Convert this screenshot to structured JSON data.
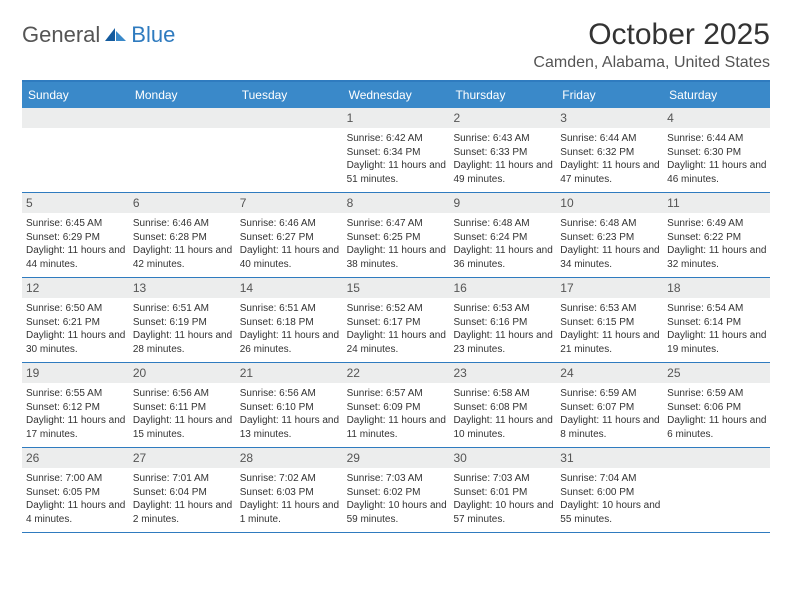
{
  "logo": {
    "text1": "General",
    "text2": "Blue"
  },
  "title": "October 2025",
  "location": "Camden, Alabama, United States",
  "colors": {
    "header_bg": "#3a89c9",
    "rule": "#2f7bbf",
    "daynum_bg": "#eceded",
    "text": "#333333"
  },
  "day_headers": [
    "Sunday",
    "Monday",
    "Tuesday",
    "Wednesday",
    "Thursday",
    "Friday",
    "Saturday"
  ],
  "weeks": [
    [
      {
        "n": "",
        "sunrise": "",
        "sunset": "",
        "day": ""
      },
      {
        "n": "",
        "sunrise": "",
        "sunset": "",
        "day": ""
      },
      {
        "n": "",
        "sunrise": "",
        "sunset": "",
        "day": ""
      },
      {
        "n": "1",
        "sunrise": "Sunrise: 6:42 AM",
        "sunset": "Sunset: 6:34 PM",
        "day": "Daylight: 11 hours and 51 minutes."
      },
      {
        "n": "2",
        "sunrise": "Sunrise: 6:43 AM",
        "sunset": "Sunset: 6:33 PM",
        "day": "Daylight: 11 hours and 49 minutes."
      },
      {
        "n": "3",
        "sunrise": "Sunrise: 6:44 AM",
        "sunset": "Sunset: 6:32 PM",
        "day": "Daylight: 11 hours and 47 minutes."
      },
      {
        "n": "4",
        "sunrise": "Sunrise: 6:44 AM",
        "sunset": "Sunset: 6:30 PM",
        "day": "Daylight: 11 hours and 46 minutes."
      }
    ],
    [
      {
        "n": "5",
        "sunrise": "Sunrise: 6:45 AM",
        "sunset": "Sunset: 6:29 PM",
        "day": "Daylight: 11 hours and 44 minutes."
      },
      {
        "n": "6",
        "sunrise": "Sunrise: 6:46 AM",
        "sunset": "Sunset: 6:28 PM",
        "day": "Daylight: 11 hours and 42 minutes."
      },
      {
        "n": "7",
        "sunrise": "Sunrise: 6:46 AM",
        "sunset": "Sunset: 6:27 PM",
        "day": "Daylight: 11 hours and 40 minutes."
      },
      {
        "n": "8",
        "sunrise": "Sunrise: 6:47 AM",
        "sunset": "Sunset: 6:25 PM",
        "day": "Daylight: 11 hours and 38 minutes."
      },
      {
        "n": "9",
        "sunrise": "Sunrise: 6:48 AM",
        "sunset": "Sunset: 6:24 PM",
        "day": "Daylight: 11 hours and 36 minutes."
      },
      {
        "n": "10",
        "sunrise": "Sunrise: 6:48 AM",
        "sunset": "Sunset: 6:23 PM",
        "day": "Daylight: 11 hours and 34 minutes."
      },
      {
        "n": "11",
        "sunrise": "Sunrise: 6:49 AM",
        "sunset": "Sunset: 6:22 PM",
        "day": "Daylight: 11 hours and 32 minutes."
      }
    ],
    [
      {
        "n": "12",
        "sunrise": "Sunrise: 6:50 AM",
        "sunset": "Sunset: 6:21 PM",
        "day": "Daylight: 11 hours and 30 minutes."
      },
      {
        "n": "13",
        "sunrise": "Sunrise: 6:51 AM",
        "sunset": "Sunset: 6:19 PM",
        "day": "Daylight: 11 hours and 28 minutes."
      },
      {
        "n": "14",
        "sunrise": "Sunrise: 6:51 AM",
        "sunset": "Sunset: 6:18 PM",
        "day": "Daylight: 11 hours and 26 minutes."
      },
      {
        "n": "15",
        "sunrise": "Sunrise: 6:52 AM",
        "sunset": "Sunset: 6:17 PM",
        "day": "Daylight: 11 hours and 24 minutes."
      },
      {
        "n": "16",
        "sunrise": "Sunrise: 6:53 AM",
        "sunset": "Sunset: 6:16 PM",
        "day": "Daylight: 11 hours and 23 minutes."
      },
      {
        "n": "17",
        "sunrise": "Sunrise: 6:53 AM",
        "sunset": "Sunset: 6:15 PM",
        "day": "Daylight: 11 hours and 21 minutes."
      },
      {
        "n": "18",
        "sunrise": "Sunrise: 6:54 AM",
        "sunset": "Sunset: 6:14 PM",
        "day": "Daylight: 11 hours and 19 minutes."
      }
    ],
    [
      {
        "n": "19",
        "sunrise": "Sunrise: 6:55 AM",
        "sunset": "Sunset: 6:12 PM",
        "day": "Daylight: 11 hours and 17 minutes."
      },
      {
        "n": "20",
        "sunrise": "Sunrise: 6:56 AM",
        "sunset": "Sunset: 6:11 PM",
        "day": "Daylight: 11 hours and 15 minutes."
      },
      {
        "n": "21",
        "sunrise": "Sunrise: 6:56 AM",
        "sunset": "Sunset: 6:10 PM",
        "day": "Daylight: 11 hours and 13 minutes."
      },
      {
        "n": "22",
        "sunrise": "Sunrise: 6:57 AM",
        "sunset": "Sunset: 6:09 PM",
        "day": "Daylight: 11 hours and 11 minutes."
      },
      {
        "n": "23",
        "sunrise": "Sunrise: 6:58 AM",
        "sunset": "Sunset: 6:08 PM",
        "day": "Daylight: 11 hours and 10 minutes."
      },
      {
        "n": "24",
        "sunrise": "Sunrise: 6:59 AM",
        "sunset": "Sunset: 6:07 PM",
        "day": "Daylight: 11 hours and 8 minutes."
      },
      {
        "n": "25",
        "sunrise": "Sunrise: 6:59 AM",
        "sunset": "Sunset: 6:06 PM",
        "day": "Daylight: 11 hours and 6 minutes."
      }
    ],
    [
      {
        "n": "26",
        "sunrise": "Sunrise: 7:00 AM",
        "sunset": "Sunset: 6:05 PM",
        "day": "Daylight: 11 hours and 4 minutes."
      },
      {
        "n": "27",
        "sunrise": "Sunrise: 7:01 AM",
        "sunset": "Sunset: 6:04 PM",
        "day": "Daylight: 11 hours and 2 minutes."
      },
      {
        "n": "28",
        "sunrise": "Sunrise: 7:02 AM",
        "sunset": "Sunset: 6:03 PM",
        "day": "Daylight: 11 hours and 1 minute."
      },
      {
        "n": "29",
        "sunrise": "Sunrise: 7:03 AM",
        "sunset": "Sunset: 6:02 PM",
        "day": "Daylight: 10 hours and 59 minutes."
      },
      {
        "n": "30",
        "sunrise": "Sunrise: 7:03 AM",
        "sunset": "Sunset: 6:01 PM",
        "day": "Daylight: 10 hours and 57 minutes."
      },
      {
        "n": "31",
        "sunrise": "Sunrise: 7:04 AM",
        "sunset": "Sunset: 6:00 PM",
        "day": "Daylight: 10 hours and 55 minutes."
      },
      {
        "n": "",
        "sunrise": "",
        "sunset": "",
        "day": ""
      }
    ]
  ]
}
